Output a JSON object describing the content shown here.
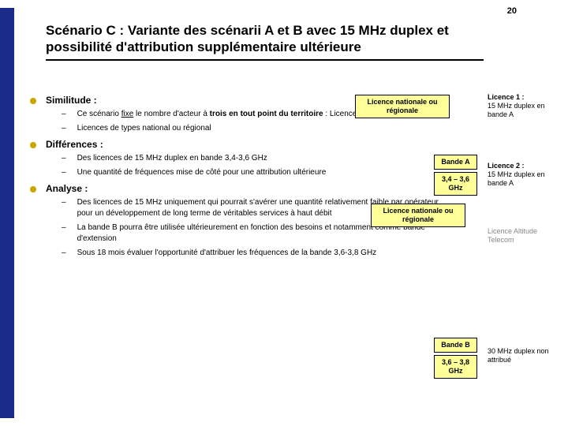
{
  "pageNumber": "20",
  "title": "Scénario C : Variante des scénarii A et B avec 15 MHz duplex et possibilité d'attribution supplémentaire ultérieure",
  "sections": {
    "similitude": {
      "heading": "Similitude :",
      "items": [
        "Ce scénario <u>fixe</u> le nombre d'acteur à <b>trois en tout point du territoire</b> : Licence 1, Licence 2 et Altitude",
        "Licences de types national ou régional"
      ]
    },
    "differences": {
      "heading": "Différences :",
      "items": [
        "Des licences de 15 MHz duplex en bande 3,4-3,6 GHz",
        "Une quantité de fréquences mise de côté pour une attribution ultérieure"
      ]
    },
    "analyse": {
      "heading": "Analyse :",
      "items": [
        "Des licences de 15 MHz uniquement qui pourrait s'avérer une quantité relativement faible par opérateur pour un développement de long terme de véritables services à haut débit",
        "La bande B pourra être utilisée ultérieurement en fonction des besoins et notamment comme bande d'extension",
        "Sous 18 mois évaluer l'opportunité d'attribuer les fréquences de la bande 3,6-3,8 GHz"
      ]
    }
  },
  "boxes": {
    "licNat1": "Licence nationale ou régionale",
    "bandeA": "Bande A",
    "range1": "3,4 – 3,6 GHz",
    "licNat2": "Licence nationale ou régionale",
    "bandeB": "Bande B",
    "range2": "3,6 – 3,8 GHz"
  },
  "sideLabels": {
    "lic1_title": "Licence 1 :",
    "lic1_text": "15 MHz duplex en bande A",
    "lic2_title": "Licence 2 :",
    "lic2_text": "15 MHz duplex en bande A",
    "alt_title": "Licence Altitude Telecom",
    "bandB_text": "30 MHz duplex non attribué"
  },
  "colors": {
    "blueBar": "#1a2b8a",
    "bullet": "#c6a800",
    "boxBg": "#ffff99"
  }
}
